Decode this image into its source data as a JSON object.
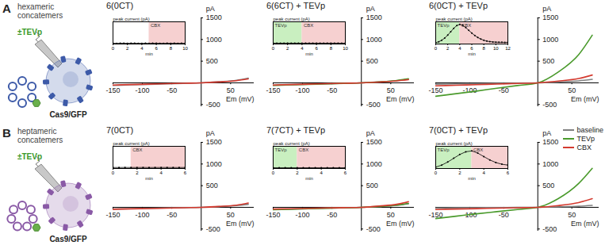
{
  "panels": [
    {
      "label": "A",
      "title": "hexameric concatemers",
      "treatment": "±TEVp",
      "cell": "Cas9/GFP",
      "subunits": 6,
      "color": "#3d5aa8"
    },
    {
      "label": "B",
      "title": "heptameric concatemers",
      "treatment": "±TEVp",
      "cell": "Cas9/GFP",
      "subunits": 7,
      "color": "#8a5aa6"
    }
  ],
  "chart_data": [
    {
      "type": "line",
      "title": "6(0CT)",
      "x_label": "Em (mV)",
      "y_label": "pA",
      "xlim": [
        -150,
        90
      ],
      "ylim": [
        -550,
        1500
      ],
      "xticks": [
        -150,
        -100,
        -50,
        50
      ],
      "yticks": [
        -500,
        500,
        1000,
        1500
      ],
      "x": [
        -150,
        -120,
        -90,
        -60,
        -30,
        0,
        30,
        60,
        80
      ],
      "series": [
        {
          "name": "baseline",
          "color": "#808080",
          "values": [
            -60,
            -48,
            -36,
            -24,
            -12,
            0,
            25,
            60,
            110
          ]
        },
        {
          "name": "CBX",
          "color": "#d43a2f",
          "values": [
            -50,
            -40,
            -30,
            -20,
            -10,
            0,
            20,
            50,
            90
          ]
        }
      ],
      "inset": {
        "title": "peak current (pA)",
        "x_label": "min",
        "xlim": [
          0,
          10
        ],
        "xticks": [
          0,
          2,
          4,
          6,
          8,
          10
        ],
        "ylim": [
          0,
          1300
        ],
        "tick_labels": "x",
        "color": "#000000",
        "x": [
          0,
          0.5,
          1,
          1.5,
          2,
          2.5,
          3,
          3.5,
          4,
          4.5,
          5,
          5.5,
          6,
          6.5,
          7,
          7.5,
          8,
          8.5,
          9,
          9.5,
          10
        ],
        "values": [
          42,
          40,
          41,
          43,
          40,
          41,
          42,
          40,
          39,
          41,
          40,
          42,
          41,
          40,
          39,
          41,
          40,
          42,
          40,
          41,
          40
        ],
        "regions": [
          {
            "name": "CBX",
            "start": 5,
            "end": 10,
            "color": "#f6d0d0"
          }
        ]
      }
    },
    {
      "type": "line",
      "title": "6(6CT) + TEVp",
      "x_label": "Em (mV)",
      "y_label": "pA",
      "xlim": [
        -150,
        90
      ],
      "ylim": [
        -550,
        1500
      ],
      "xticks": [
        -150,
        -100,
        -50,
        50
      ],
      "yticks": [
        -500,
        500,
        1000,
        1500
      ],
      "x": [
        -150,
        -120,
        -90,
        -60,
        -30,
        0,
        30,
        60,
        80
      ],
      "series": [
        {
          "name": "baseline",
          "color": "#808080",
          "values": [
            -55,
            -44,
            -33,
            -22,
            -11,
            0,
            20,
            50,
            85
          ]
        },
        {
          "name": "TEVp",
          "color": "#4a9a2c",
          "values": [
            -60,
            -48,
            -36,
            -24,
            -12,
            0,
            22,
            55,
            95
          ]
        },
        {
          "name": "CBX",
          "color": "#d43a2f",
          "values": [
            -50,
            -40,
            -30,
            -20,
            -10,
            0,
            18,
            45,
            75
          ]
        }
      ],
      "inset": {
        "title": "peak current (pA)",
        "x_label": "min",
        "xlim": [
          0,
          10
        ],
        "xticks": [
          0,
          2,
          4,
          6,
          8,
          10
        ],
        "ylim": [
          0,
          1300
        ],
        "tick_labels": "x",
        "color": "#000000",
        "x": [
          0,
          0.5,
          1,
          1.5,
          2,
          2.5,
          3,
          3.5,
          4,
          4.5,
          5,
          5.5,
          6,
          6.5,
          7,
          7.5,
          8,
          8.5,
          9,
          9.5,
          10
        ],
        "values": [
          48,
          50,
          47,
          49,
          51,
          48,
          50,
          49,
          47,
          50,
          48,
          49,
          50,
          48,
          47,
          49,
          50,
          48,
          49,
          47,
          48
        ],
        "regions": [
          {
            "name": "TEVp",
            "start": 0,
            "end": 4,
            "color": "#c9efc0"
          },
          {
            "name": "CBX",
            "start": 4,
            "end": 10,
            "color": "#f6d0d0"
          }
        ]
      }
    },
    {
      "type": "line",
      "title": "6(0CT) + TEVp",
      "x_label": "Em (mV)",
      "y_label": "pA",
      "xlim": [
        -150,
        90
      ],
      "ylim": [
        -550,
        1500
      ],
      "xticks": [
        -150,
        -100,
        -50,
        50
      ],
      "yticks": [
        -500,
        500,
        1000,
        1500
      ],
      "x": [
        -150,
        -120,
        -90,
        -60,
        -30,
        0,
        30,
        60,
        80
      ],
      "series": [
        {
          "name": "baseline",
          "color": "#808080",
          "values": [
            -30,
            -24,
            -18,
            -12,
            -6,
            0,
            20,
            45,
            80
          ]
        },
        {
          "name": "TEVp",
          "color": "#4a9a2c",
          "values": [
            -310,
            -250,
            -190,
            -125,
            -62,
            0,
            250,
            650,
            1100
          ]
        },
        {
          "name": "CBX",
          "color": "#d43a2f",
          "values": [
            -70,
            -56,
            -42,
            -28,
            -14,
            0,
            40,
            100,
            180
          ]
        }
      ],
      "inset": {
        "title": "peak current (pA)",
        "x_label": "min",
        "xlim": [
          0,
          12
        ],
        "xticks": [
          0,
          2,
          4,
          6,
          8,
          10,
          12
        ],
        "ylim": [
          0,
          1300
        ],
        "tick_labels": "x",
        "color": "#000000",
        "x": [
          0,
          0.5,
          1,
          1.5,
          2,
          2.5,
          3,
          3.5,
          4,
          4.5,
          5,
          5.5,
          6,
          6.5,
          7,
          7.5,
          8,
          8.5,
          9,
          9.5,
          10,
          10.5,
          11,
          11.5,
          12
        ],
        "values": [
          80,
          130,
          220,
          350,
          520,
          720,
          920,
          1080,
          1150,
          1100,
          960,
          800,
          640,
          500,
          380,
          290,
          220,
          170,
          140,
          120,
          110,
          100,
          100,
          95,
          95
        ],
        "regions": [
          {
            "name": "TEVp",
            "start": 0,
            "end": 4,
            "color": "#c9efc0"
          },
          {
            "name": "CBX",
            "start": 4,
            "end": 12,
            "color": "#f6d0d0"
          }
        ]
      }
    },
    {
      "type": "line",
      "title": "7(0CT)",
      "x_label": "Em (mV)",
      "y_label": "pA",
      "xlim": [
        -150,
        90
      ],
      "ylim": [
        -550,
        1500
      ],
      "xticks": [
        -150,
        -100,
        -50,
        50
      ],
      "yticks": [
        -500,
        500,
        1000,
        1500
      ],
      "x": [
        -150,
        -120,
        -90,
        -60,
        -30,
        0,
        30,
        60,
        80
      ],
      "series": [
        {
          "name": "baseline",
          "color": "#808080",
          "values": [
            -40,
            -32,
            -24,
            -16,
            -8,
            0,
            15,
            40,
            70
          ]
        },
        {
          "name": "CBX",
          "color": "#d43a2f",
          "values": [
            -45,
            -36,
            -27,
            -18,
            -9,
            0,
            20,
            50,
            100
          ]
        }
      ],
      "inset": {
        "title": "peak current (pA)",
        "x_label": "min",
        "xlim": [
          0,
          6
        ],
        "xticks": [
          0,
          2,
          4,
          6
        ],
        "ylim": [
          0,
          1300
        ],
        "tick_labels": "x",
        "color": "#000000",
        "x": [
          0,
          0.5,
          1,
          1.5,
          2,
          2.5,
          3,
          3.5,
          4,
          4.5,
          5,
          5.5,
          6
        ],
        "values": [
          60,
          58,
          61,
          59,
          60,
          62,
          58,
          59,
          61,
          60,
          58,
          59,
          60
        ],
        "regions": [
          {
            "name": "CBX",
            "start": 1.5,
            "end": 6,
            "color": "#f6d0d0"
          }
        ]
      }
    },
    {
      "type": "line",
      "title": "7(7CT) + TEVp",
      "x_label": "Em (mV)",
      "y_label": "pA",
      "xlim": [
        -150,
        90
      ],
      "ylim": [
        -550,
        1500
      ],
      "xticks": [
        -150,
        -100,
        -50,
        50
      ],
      "yticks": [
        -500,
        500,
        1000,
        1500
      ],
      "x": [
        -150,
        -120,
        -90,
        -60,
        -30,
        0,
        30,
        60,
        80
      ],
      "series": [
        {
          "name": "baseline",
          "color": "#808080",
          "values": [
            -50,
            -40,
            -30,
            -20,
            -10,
            0,
            18,
            45,
            80
          ]
        },
        {
          "name": "TEVp",
          "color": "#4a9a2c",
          "values": [
            -55,
            -44,
            -33,
            -22,
            -11,
            0,
            20,
            50,
            90
          ]
        },
        {
          "name": "CBX",
          "color": "#d43a2f",
          "values": [
            -40,
            -32,
            -24,
            -16,
            -8,
            0,
            30,
            70,
            130
          ]
        }
      ],
      "inset": {
        "title": "peak current (pA)",
        "x_label": "min",
        "xlim": [
          0,
          6
        ],
        "xticks": [
          0,
          2,
          4,
          6
        ],
        "ylim": [
          0,
          1300
        ],
        "tick_labels": "x",
        "color": "#000000",
        "x": [
          0,
          0.5,
          1,
          1.5,
          2,
          2.5,
          3,
          3.5,
          4,
          4.5,
          5,
          5.5,
          6
        ],
        "values": [
          45,
          44,
          46,
          45,
          43,
          44,
          46,
          45,
          44,
          43,
          45,
          44,
          45
        ],
        "regions": [
          {
            "name": "TEVp",
            "start": 0,
            "end": 2,
            "color": "#c9efc0"
          },
          {
            "name": "CBX",
            "start": 2,
            "end": 6,
            "color": "#f6d0d0"
          }
        ]
      }
    },
    {
      "type": "line",
      "title": "7(0CT) + TEVp",
      "x_label": "Em (mV)",
      "y_label": "pA",
      "legend": "top-right",
      "xlim": [
        -150,
        90
      ],
      "ylim": [
        -550,
        1500
      ],
      "xticks": [
        -150,
        -100,
        -50,
        50
      ],
      "yticks": [
        -500,
        500,
        1000,
        1500
      ],
      "x": [
        -150,
        -120,
        -90,
        -60,
        -30,
        0,
        30,
        60,
        80
      ],
      "series": [
        {
          "name": "baseline",
          "color": "#808080",
          "values": [
            -15,
            -12,
            -9,
            -6,
            -3,
            0,
            10,
            25,
            45
          ]
        },
        {
          "name": "TEVp",
          "color": "#4a9a2c",
          "values": [
            -260,
            -205,
            -150,
            -100,
            -50,
            0,
            200,
            550,
            900
          ]
        },
        {
          "name": "CBX",
          "color": "#d43a2f",
          "values": [
            -50,
            -40,
            -30,
            -20,
            -10,
            0,
            40,
            110,
            200
          ]
        }
      ],
      "inset": {
        "title": "peak current (pA)",
        "x_label": "min",
        "xlim": [
          0,
          6
        ],
        "xticks": [
          0,
          2,
          4,
          6
        ],
        "ylim": [
          0,
          1300
        ],
        "tick_labels": "x",
        "color": "#000000",
        "x": [
          0,
          0.5,
          1,
          1.5,
          2,
          2.5,
          3,
          3.5,
          4,
          4.5,
          5,
          5.5,
          6
        ],
        "values": [
          80,
          200,
          380,
          600,
          820,
          980,
          1030,
          900,
          700,
          500,
          350,
          250,
          200
        ],
        "regions": [
          {
            "name": "TEVp",
            "start": 0,
            "end": 3,
            "color": "#c9efc0"
          },
          {
            "name": "CBX",
            "start": 3,
            "end": 6,
            "color": "#f6d0d0"
          }
        ]
      }
    }
  ]
}
